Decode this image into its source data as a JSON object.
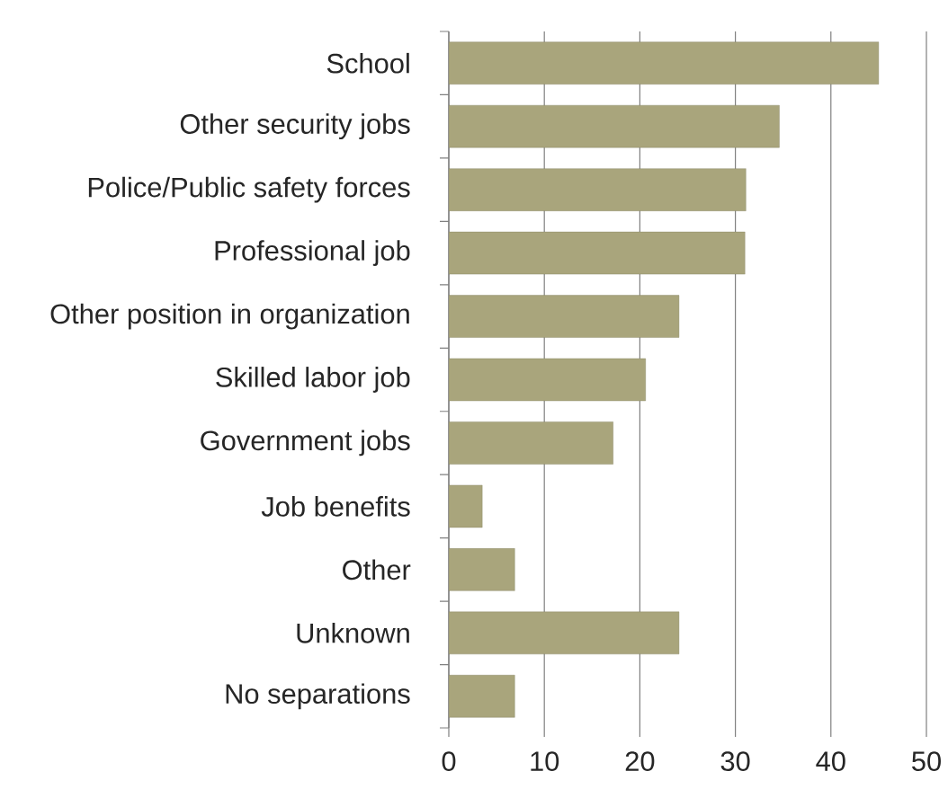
{
  "chart_data": {
    "type": "bar",
    "orientation": "horizontal",
    "categories": [
      "School",
      "Other security jobs",
      "Police/Public safety forces",
      "Professional job",
      "Other position in organization",
      "Skilled labor job",
      "Government jobs",
      "Job benefits",
      "Other",
      "Unknown",
      "No separations"
    ],
    "values": [
      45,
      34.6,
      31.1,
      31,
      24.1,
      20.6,
      17.2,
      3.5,
      6.9,
      24.1,
      6.9
    ],
    "color": "#a9a57c",
    "xlim": [
      0,
      50
    ],
    "xticks": [
      0,
      10,
      20,
      30,
      40,
      50
    ],
    "grid": "x"
  }
}
